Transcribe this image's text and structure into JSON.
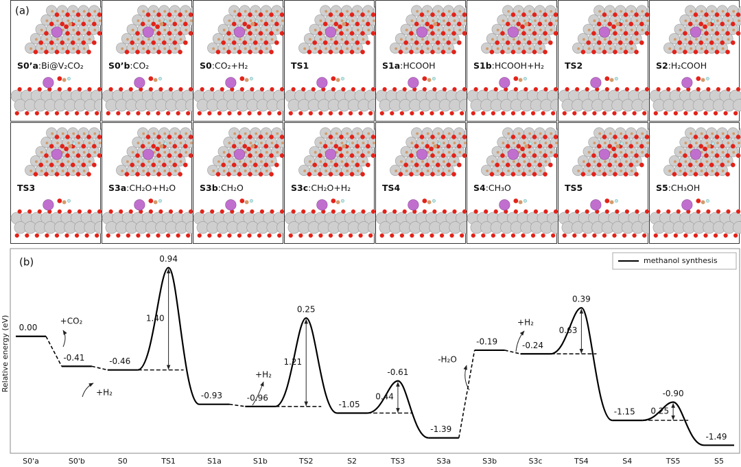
{
  "panel_a": {
    "label": "(a)",
    "tiles": [
      {
        "id": "S0’a",
        "formula": ":Bi@V₂CO₂"
      },
      {
        "id": "S0’b",
        "formula": ":CO₂"
      },
      {
        "id": "S0",
        "formula": ":CO₂+H₂"
      },
      {
        "id": "TS1"
      },
      {
        "id": "S1a",
        "formula": ":HCOOH"
      },
      {
        "id": "S1b",
        "formula": ":HCOOH+H₂"
      },
      {
        "id": "TS2"
      },
      {
        "id": "S2",
        "formula": ":H₂COOH"
      },
      {
        "id": "TS3"
      },
      {
        "id": "S3a",
        "formula": ":CH₂O+H₂O"
      },
      {
        "id": "S3b",
        "formula": ":CH₂O"
      },
      {
        "id": "S3c",
        "formula": ":CH₂O+H₂"
      },
      {
        "id": "TS4"
      },
      {
        "id": "S4",
        "formula": ":CH₃O"
      },
      {
        "id": "TS5"
      },
      {
        "id": "S5",
        "formula": ":CH₃OH"
      }
    ]
  },
  "chart_data": {
    "type": "energy-profile",
    "label": "(b)",
    "y_label": "Relative energy (eV)",
    "categories": [
      "S0'a",
      "S0'b",
      "S0",
      "TS1",
      "S1a",
      "S1b",
      "TS2",
      "S2",
      "TS3",
      "S3a",
      "S3b",
      "S3c",
      "TS4",
      "S4",
      "TS5",
      "S5"
    ],
    "series": [
      {
        "name": "methanol synthesis",
        "color": "#000000",
        "values": [
          0,
          -0.41,
          -0.46,
          0.94,
          -0.93,
          -0.96,
          0.25,
          -1.05,
          -0.61,
          -1.39,
          -0.19,
          -0.24,
          0.39,
          -1.15,
          -0.9,
          -1.49
        ],
        "value_labels": [
          "0.00",
          "-0.41",
          "-0.46",
          "0.94",
          "-0.93",
          "-0.96",
          "0.25",
          "-1.05",
          "-0.61",
          "-1.39",
          "-0.19",
          "-0.24",
          "0.39",
          "-1.15",
          "-0.90",
          "-1.49"
        ]
      }
    ],
    "barriers": {
      "values": [
        null,
        null,
        null,
        1.4,
        null,
        null,
        1.21,
        null,
        0.44,
        null,
        null,
        null,
        0.63,
        null,
        0.25,
        null
      ],
      "value_labels": [
        null,
        null,
        null,
        "1.40",
        null,
        null,
        "1.21",
        null,
        "0.44",
        null,
        null,
        null,
        "0.63",
        null,
        "0.25",
        null
      ]
    },
    "annotations": [
      "+CO₂",
      "+H₂",
      "+H₂",
      "-H₂O",
      "+H₂"
    ],
    "ylim": [
      -1.6,
      1.2
    ],
    "legend": "top-right"
  }
}
